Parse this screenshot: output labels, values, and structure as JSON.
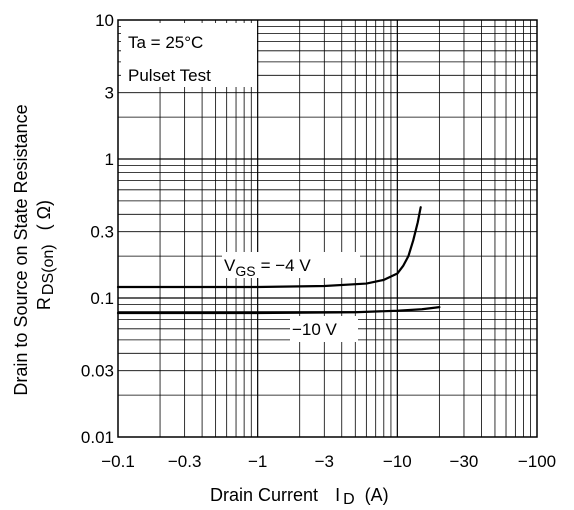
{
  "chart_data": {
    "type": "line",
    "x_scale": "log",
    "y_scale": "log",
    "xlim": [
      0.1,
      100
    ],
    "ylim": [
      0.01,
      10
    ],
    "x_ticks": [
      {
        "value": 0.1,
        "label": "−0.1"
      },
      {
        "value": 0.3,
        "label": "−0.3"
      },
      {
        "value": 1,
        "label": "−1"
      },
      {
        "value": 3,
        "label": "−3"
      },
      {
        "value": 10,
        "label": "−10"
      },
      {
        "value": 30,
        "label": "−30"
      },
      {
        "value": 100,
        "label": "−100"
      }
    ],
    "y_ticks": [
      {
        "value": 10,
        "label": "10"
      },
      {
        "value": 3,
        "label": "3"
      },
      {
        "value": 1,
        "label": "1"
      },
      {
        "value": 0.3,
        "label": "0.3"
      },
      {
        "value": 0.1,
        "label": "0.1"
      },
      {
        "value": 0.03,
        "label": "0.03"
      },
      {
        "value": 0.01,
        "label": "0.01"
      }
    ],
    "xlabel": {
      "main": "Drain Current",
      "symbol": "I",
      "sub": "D",
      "unit": "(A)"
    },
    "ylabel": {
      "line1": "Drain to Source on State Resistance",
      "symbol": "R",
      "sub": "DS(on)",
      "unit": "( Ω)"
    },
    "grid": true,
    "annotations": {
      "condition_1": "Ta = 25°C",
      "condition_2": "Pulset Test",
      "vgs_symbol": "V",
      "vgs_sub": "GS",
      "vgs_value": "= −4 V",
      "vgs_10": "−10 V"
    },
    "series": [
      {
        "vgs": "-4 V",
        "points": [
          [
            0.1,
            0.12
          ],
          [
            1,
            0.12
          ],
          [
            3,
            0.122
          ],
          [
            6,
            0.127
          ],
          [
            8,
            0.135
          ],
          [
            10,
            0.15
          ],
          [
            11,
            0.17
          ],
          [
            12,
            0.2
          ],
          [
            13,
            0.26
          ],
          [
            14,
            0.35
          ],
          [
            14.7,
            0.45
          ]
        ]
      },
      {
        "vgs": "-10 V",
        "points": [
          [
            0.1,
            0.078
          ],
          [
            1,
            0.078
          ],
          [
            5,
            0.079
          ],
          [
            10,
            0.081
          ],
          [
            15,
            0.083
          ],
          [
            20,
            0.086
          ]
        ]
      }
    ]
  }
}
